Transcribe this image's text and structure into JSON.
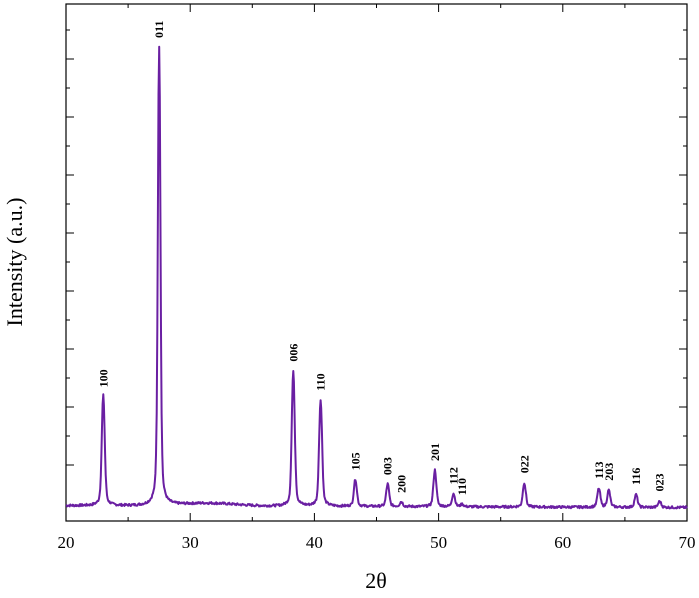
{
  "chart_data": {
    "type": "line",
    "title": "",
    "xlabel": "2θ",
    "ylabel": "Intensity (a.u.)",
    "xlim": [
      20,
      70
    ],
    "ylim": [
      0,
      1000
    ],
    "x_ticks": [
      20,
      30,
      40,
      50,
      60,
      70
    ],
    "y_tick_labels_shown": false,
    "grid": false,
    "line_color": "#6a1fa2",
    "baseline": 20,
    "peaks": [
      {
        "x": 23.0,
        "y": 255,
        "hkl": "100"
      },
      {
        "x": 27.5,
        "y": 1000,
        "hkl": "011"
      },
      {
        "x": 38.3,
        "y": 310,
        "hkl": "006"
      },
      {
        "x": 40.5,
        "y": 248,
        "hkl": "110"
      },
      {
        "x": 43.3,
        "y": 78,
        "hkl": "105"
      },
      {
        "x": 45.9,
        "y": 68,
        "hkl": "003"
      },
      {
        "x": 47.0,
        "y": 30,
        "hkl": "200"
      },
      {
        "x": 49.7,
        "y": 98,
        "hkl": "201"
      },
      {
        "x": 51.2,
        "y": 48,
        "hkl": "112"
      },
      {
        "x": 51.9,
        "y": 25,
        "hkl": "110"
      },
      {
        "x": 56.9,
        "y": 72,
        "hkl": "022"
      },
      {
        "x": 62.9,
        "y": 60,
        "hkl": "113"
      },
      {
        "x": 63.7,
        "y": 56,
        "hkl": "203"
      },
      {
        "x": 65.9,
        "y": 47,
        "hkl": "116"
      },
      {
        "x": 67.8,
        "y": 33,
        "hkl": "023"
      }
    ]
  }
}
